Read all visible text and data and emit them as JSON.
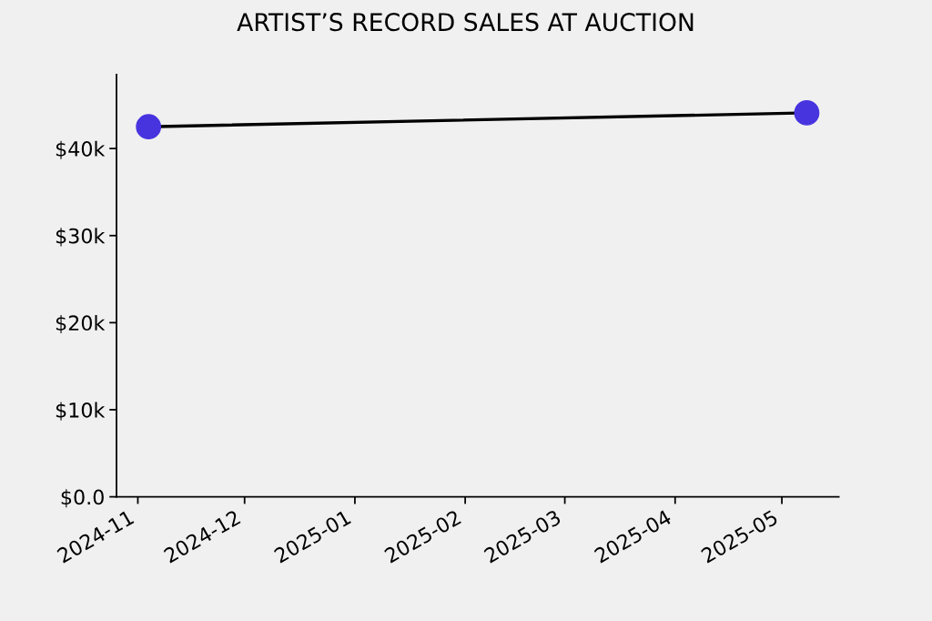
{
  "chart_data": {
    "type": "line",
    "title": "ARTIST’S RECORD SALES AT AUCTION",
    "x": [
      "2024-11-04",
      "2025-05-08"
    ],
    "series": [
      {
        "color": "#000000",
        "colors": [
          "#4834df",
          "#4834df"
        ],
        "values": [
          42500,
          44100
        ]
      }
    ],
    "xlim": [
      "2024-10-26",
      "2025-05-17"
    ],
    "xticks": [
      "2024-11",
      "2024-12",
      "2025-01",
      "2025-02",
      "2025-03",
      "2025-04",
      "2025-05"
    ],
    "ylim": [
      0,
      48500
    ],
    "yticks": [
      {
        "value": 0,
        "label": "$0.0"
      },
      {
        "value": 10000,
        "label": "$10k"
      },
      {
        "value": 20000,
        "label": "$20k"
      },
      {
        "value": 30000,
        "label": "$30k"
      },
      {
        "value": 40000,
        "label": "$40k"
      }
    ],
    "marker": "circle",
    "line_style": "solid",
    "grid": false
  }
}
